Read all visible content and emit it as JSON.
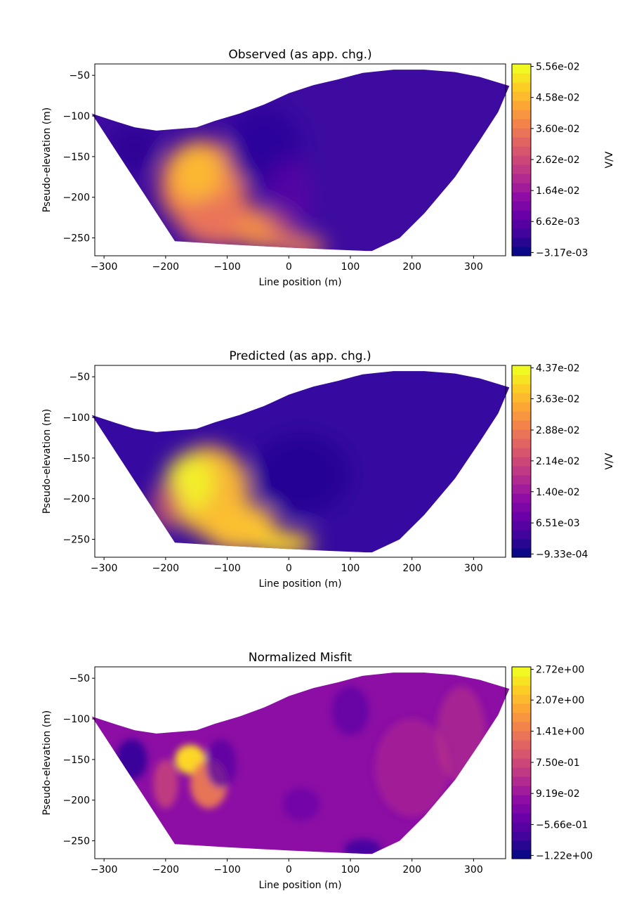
{
  "chart_data": [
    {
      "type": "heatmap",
      "title": "Observed (as app. chg.)",
      "xlabel": "Line position (m)",
      "ylabel": "Pseudo-elevation (m)",
      "xlim": [
        -315,
        352
      ],
      "ylim": [
        -272,
        -36
      ],
      "xticks": [
        "-300",
        "-200",
        "-100",
        "0",
        "100",
        "200",
        "300"
      ],
      "yticks": [
        "-50",
        "-100",
        "-150",
        "-200",
        "-250"
      ],
      "colormap": "plasma",
      "colorbar": {
        "label": "V/V",
        "range": [
          -0.00317,
          0.0556
        ],
        "ticks": [
          "5.56e-02",
          "4.58e-02",
          "3.60e-02",
          "2.62e-02",
          "1.64e-02",
          "6.62e-03",
          "-3.17e-03"
        ]
      },
      "grid": false
    },
    {
      "type": "heatmap",
      "title": "Predicted (as app. chg.)",
      "xlabel": "Line position (m)",
      "ylabel": "Pseudo-elevation (m)",
      "xlim": [
        -315,
        352
      ],
      "ylim": [
        -272,
        -36
      ],
      "xticks": [
        "-300",
        "-200",
        "-100",
        "0",
        "100",
        "200",
        "300"
      ],
      "yticks": [
        "-50",
        "-100",
        "-150",
        "-200",
        "-250"
      ],
      "colormap": "plasma",
      "colorbar": {
        "label": "V/V",
        "range": [
          -0.000933,
          0.0437
        ],
        "ticks": [
          "4.37e-02",
          "3.63e-02",
          "2.88e-02",
          "2.14e-02",
          "1.40e-02",
          "6.51e-03",
          "-9.33e-04"
        ]
      },
      "grid": false
    },
    {
      "type": "heatmap",
      "title": "Normalized Misfit",
      "xlabel": "Line position (m)",
      "ylabel": "Pseudo-elevation (m)",
      "xlim": [
        -315,
        352
      ],
      "ylim": [
        -272,
        -36
      ],
      "xticks": [
        "-300",
        "-200",
        "-100",
        "0",
        "100",
        "200",
        "300"
      ],
      "yticks": [
        "-50",
        "-100",
        "-150",
        "-200",
        "-250"
      ],
      "colormap": "plasma",
      "colorbar": {
        "label": "",
        "range": [
          -1.22,
          2.72
        ],
        "ticks": [
          "2.72e+00",
          "2.07e+00",
          "1.41e+00",
          "7.50e-01",
          "9.19e-02",
          "-5.66e-01",
          "-1.22e+00"
        ]
      },
      "grid": false
    }
  ]
}
